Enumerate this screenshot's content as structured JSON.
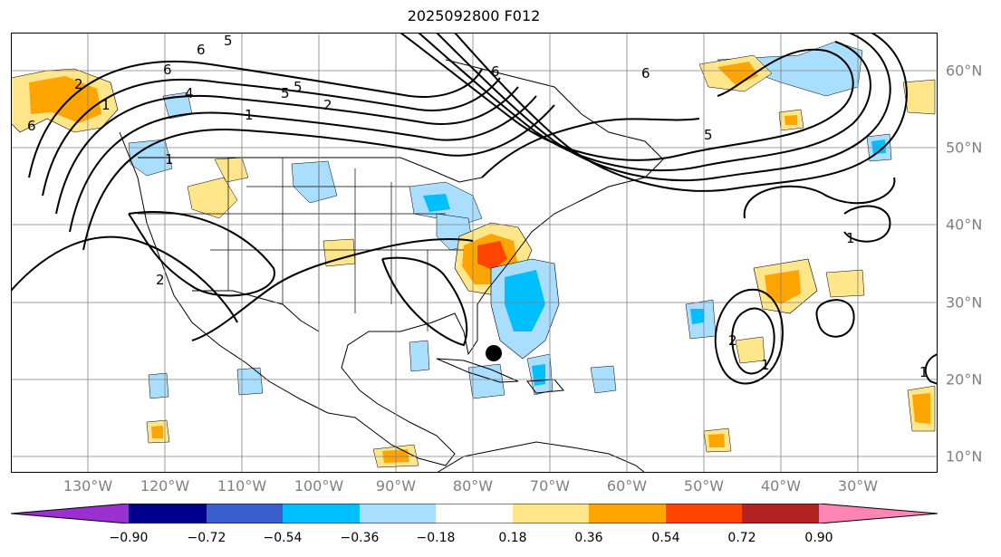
{
  "title": "2025092800 F012",
  "lon_labels": [
    "130°W",
    "120°W",
    "110°W",
    "100°W",
    "90°W",
    "80°W",
    "70°W",
    "60°W",
    "50°W",
    "40°W",
    "30°W"
  ],
  "lat_labels": [
    "60°N",
    "50°N",
    "40°N",
    "30°N",
    "20°N",
    "10°N"
  ],
  "colorbar": {
    "ticks": [
      "−0.90",
      "−0.72",
      "−0.54",
      "−0.36",
      "−0.18",
      "0.18",
      "0.36",
      "0.54",
      "0.72",
      "0.90"
    ],
    "colors": {
      "under": "#9b30d0",
      "bins": [
        "#00008b",
        "#3a5fcd",
        "#00bfff",
        "#aadeff",
        "#ffffff",
        "#ffe68a",
        "#ffa500",
        "#ff4500",
        "#b22222"
      ],
      "over": "#ff85b4"
    }
  },
  "contour_labels": [
    "6",
    "5",
    "6",
    "5",
    "2",
    "1",
    "6",
    "5",
    "6",
    "1",
    "5",
    "2",
    "1",
    "4",
    "6",
    "1",
    "2",
    "1",
    "1",
    "2"
  ],
  "marker": {
    "icon": "storm-center-dot"
  },
  "colors": {
    "land_outline": "#000000",
    "grid": "#808080"
  }
}
